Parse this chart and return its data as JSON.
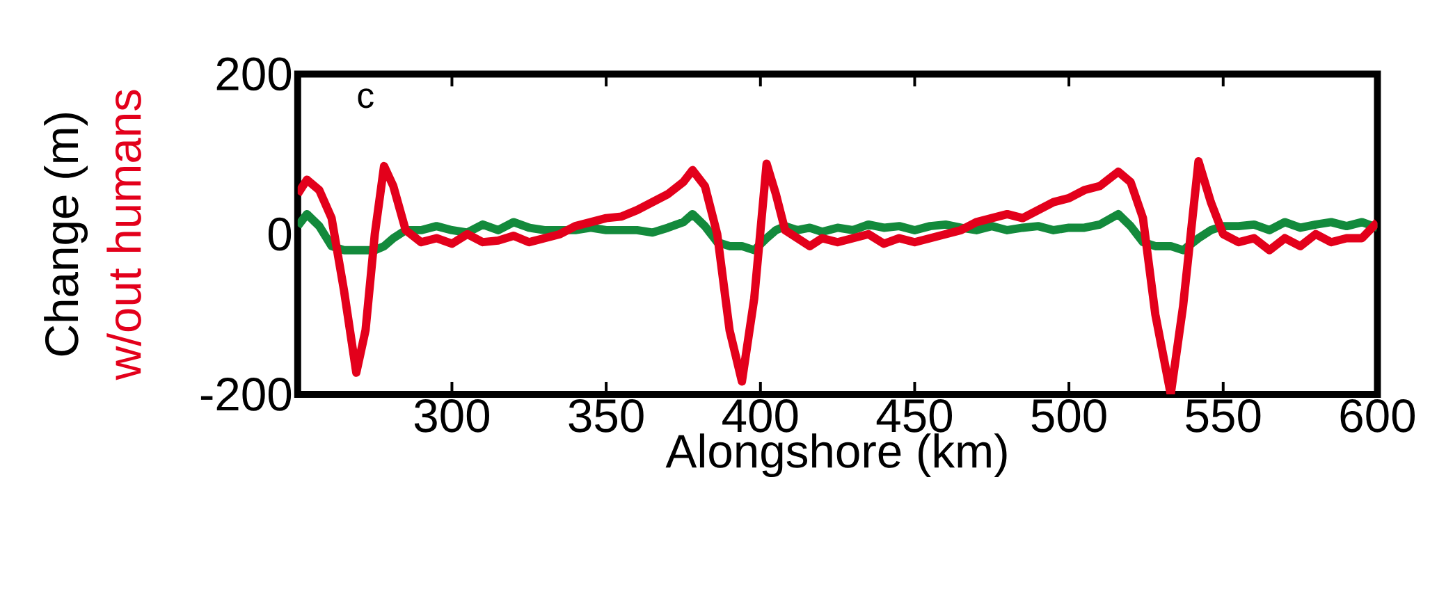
{
  "chart_data": {
    "type": "line",
    "xlabel": "Alongshore (km)",
    "ylabel": "Change (m)",
    "annotations": [
      "c"
    ],
    "xlim": [
      250,
      600
    ],
    "ylim": [
      -200,
      200
    ],
    "xticks": [
      300,
      350,
      400,
      450,
      500,
      550,
      600
    ],
    "yticks": [
      -200,
      0,
      200
    ],
    "x": [
      250,
      253,
      257,
      261,
      265,
      269,
      272,
      275,
      278,
      281,
      285,
      290,
      295,
      300,
      305,
      310,
      315,
      320,
      325,
      330,
      335,
      340,
      345,
      350,
      355,
      360,
      365,
      370,
      375,
      378,
      382,
      386,
      390,
      394,
      398,
      402,
      405,
      408,
      412,
      416,
      420,
      425,
      430,
      435,
      440,
      445,
      450,
      455,
      460,
      465,
      470,
      475,
      480,
      485,
      490,
      495,
      500,
      505,
      510,
      516,
      520,
      524,
      528,
      533,
      537,
      542,
      546,
      550,
      555,
      560,
      565,
      570,
      575,
      580,
      585,
      590,
      595,
      600
    ],
    "series": [
      {
        "color": "#138a3c",
        "values": [
          10,
          25,
          10,
          -15,
          -20,
          -20,
          -20,
          -20,
          -15,
          -5,
          5,
          5,
          10,
          5,
          2,
          12,
          5,
          15,
          8,
          5,
          5,
          5,
          8,
          5,
          5,
          5,
          2,
          8,
          15,
          25,
          10,
          -10,
          -15,
          -15,
          -20,
          -5,
          5,
          10,
          5,
          8,
          3,
          8,
          5,
          12,
          8,
          10,
          5,
          10,
          12,
          8,
          5,
          10,
          5,
          8,
          10,
          5,
          8,
          8,
          12,
          25,
          10,
          -10,
          -15,
          -15,
          -20,
          -5,
          5,
          10,
          10,
          12,
          5,
          15,
          8,
          12,
          15,
          10,
          15,
          8
        ]
      },
      {
        "name": "w/out humans",
        "color": "#e3001b",
        "values": [
          50,
          68,
          55,
          20,
          -70,
          -173,
          -120,
          0,
          85,
          60,
          5,
          -10,
          -5,
          -12,
          0,
          -10,
          -8,
          -2,
          -10,
          -5,
          0,
          10,
          15,
          20,
          22,
          30,
          40,
          50,
          65,
          80,
          60,
          0,
          -120,
          -184,
          -80,
          88,
          50,
          5,
          -5,
          -15,
          -5,
          -10,
          -5,
          0,
          -12,
          -5,
          -10,
          -5,
          0,
          5,
          15,
          20,
          25,
          20,
          30,
          40,
          45,
          55,
          60,
          78,
          65,
          20,
          -100,
          -200,
          -90,
          91,
          40,
          0,
          -10,
          -5,
          -20,
          -5,
          -15,
          0,
          -10,
          -5,
          -5,
          15
        ]
      }
    ]
  }
}
